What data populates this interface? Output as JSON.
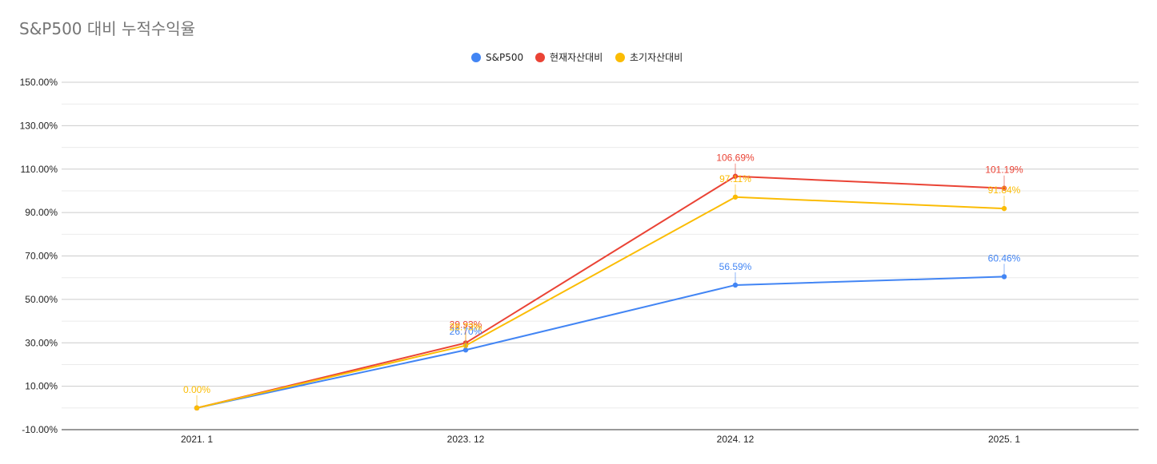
{
  "chart_data": {
    "type": "line",
    "title": "S&P500 대비 누적수익율",
    "categories": [
      "2021. 1",
      "2023. 12",
      "2024. 12",
      "2025. 1"
    ],
    "ylim": [
      -10,
      150
    ],
    "y_ticks": [
      -10,
      10,
      30,
      50,
      70,
      90,
      110,
      130,
      150
    ],
    "y_tick_labels": [
      "-10.00%",
      "10.00%",
      "30.00%",
      "50.00%",
      "70.00%",
      "90.00%",
      "110.00%",
      "130.00%",
      "150.00%"
    ],
    "grid": true,
    "legend_position": "top",
    "series": [
      {
        "name": "S&P500",
        "color": "#4285F4",
        "values": [
          0.0,
          26.7,
          56.59,
          60.46
        ],
        "labels": [
          "",
          "26.70%",
          "56.59%",
          "60.46%"
        ]
      },
      {
        "name": "현재자산대비",
        "color": "#EA4335",
        "values": [
          0.0,
          29.93,
          106.69,
          101.19
        ],
        "labels": [
          "",
          "29.93%",
          "106.69%",
          "101.19%"
        ]
      },
      {
        "name": "초기자산대비",
        "color": "#FBBC04",
        "values": [
          0.0,
          28.73,
          97.11,
          91.84
        ],
        "labels": [
          "0.00%",
          "28.73%",
          "97.11%",
          "91.84%"
        ]
      }
    ]
  }
}
